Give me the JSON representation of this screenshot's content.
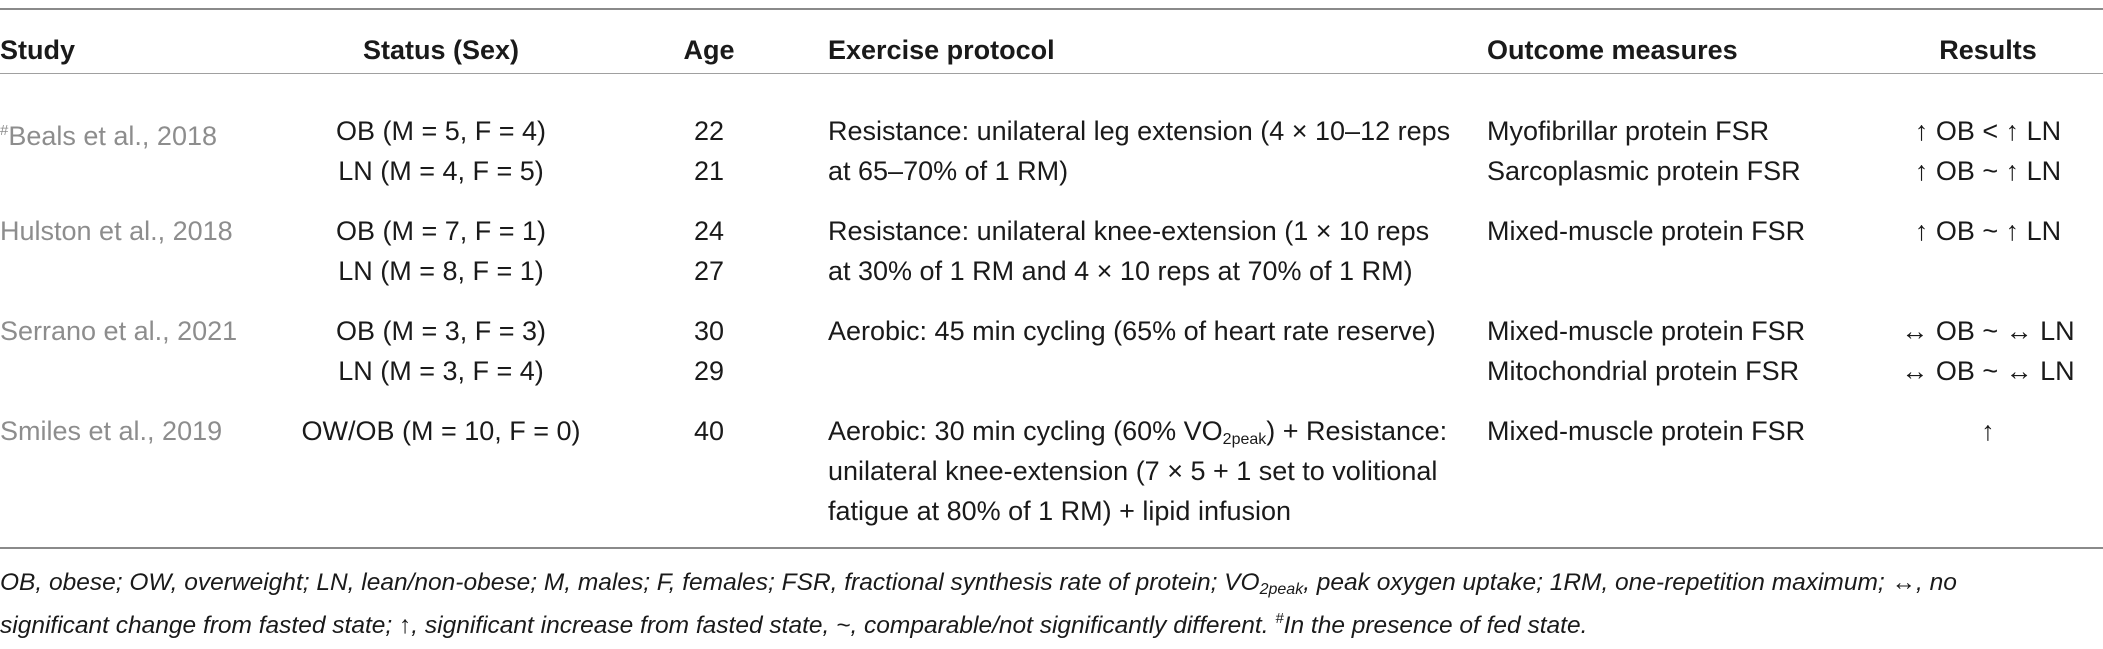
{
  "header": {
    "study": "Study",
    "status": "Status (Sex)",
    "age": "Age",
    "exercise": "Exercise protocol",
    "outcome": "Outcome measures",
    "results": "Results"
  },
  "rows": [
    {
      "study_mark": "#",
      "study": "Beals et al., 2018",
      "status": [
        "OB (M = 5, F = 4)",
        "LN (M = 4, F = 5)"
      ],
      "age": [
        "22",
        "21"
      ],
      "exercise": [
        "Resistance: unilateral leg extension (4 × 10–12 reps",
        "at 65–70% of 1 RM)"
      ],
      "outcome": [
        "Myofibrillar protein FSR",
        "Sarcoplasmic protein FSR"
      ],
      "results": [
        "↑ OB < ↑ LN",
        "↑ OB ~ ↑ LN"
      ]
    },
    {
      "study": "Hulston et al., 2018",
      "status": [
        "OB (M = 7, F = 1)",
        "LN (M = 8, F = 1)"
      ],
      "age": [
        "24",
        "27"
      ],
      "exercise": [
        "Resistance: unilateral knee-extension (1 × 10 reps",
        "at 30% of 1 RM and 4 × 10 reps at 70% of 1 RM)"
      ],
      "outcome": [
        "Mixed-muscle protein FSR"
      ],
      "results": [
        "↑ OB ~ ↑ LN"
      ]
    },
    {
      "study": "Serrano et al., 2021",
      "status": [
        "OB (M = 3, F = 3)",
        "LN (M = 3, F = 4)"
      ],
      "age": [
        "30",
        "29"
      ],
      "exercise": [
        "Aerobic: 45 min cycling (65% of heart rate reserve)"
      ],
      "outcome": [
        "Mixed-muscle protein FSR",
        "Mitochondrial protein FSR"
      ],
      "results": [
        "↔ OB ~ ↔ LN",
        "↔ OB ~ ↔ LN"
      ]
    },
    {
      "study": "Smiles et al., 2019",
      "status": [
        "OW/OB (M = 10, F = 0)"
      ],
      "age": [
        "40"
      ],
      "exercise_line1_a": "Aerobic: 30 min cycling (60% VO",
      "exercise_line1_sub": "2peak",
      "exercise_line1_b": ") + Resistance:",
      "exercise": [
        "unilateral knee-extension (7 × 5 + 1 set to volitional",
        "fatigue at 80% of 1 RM) + lipid infusion"
      ],
      "outcome": [
        "Mixed-muscle protein FSR"
      ],
      "results": [
        "↑"
      ]
    }
  ],
  "footnote": {
    "line1_a": "OB, obese; OW, overweight; LN, lean/non-obese; M, males; F, females; FSR, fractional synthesis rate of protein; VO",
    "line1_sub": "2peak",
    "line1_b": ", peak oxygen uptake; 1RM, one-repetition maximum; ↔, no",
    "line2_a": "significant change from fasted state; ↑, significant increase from fasted state, ~, comparable/not significantly different. ",
    "line2_mark": "#",
    "line2_b": "In the presence of fed state."
  }
}
